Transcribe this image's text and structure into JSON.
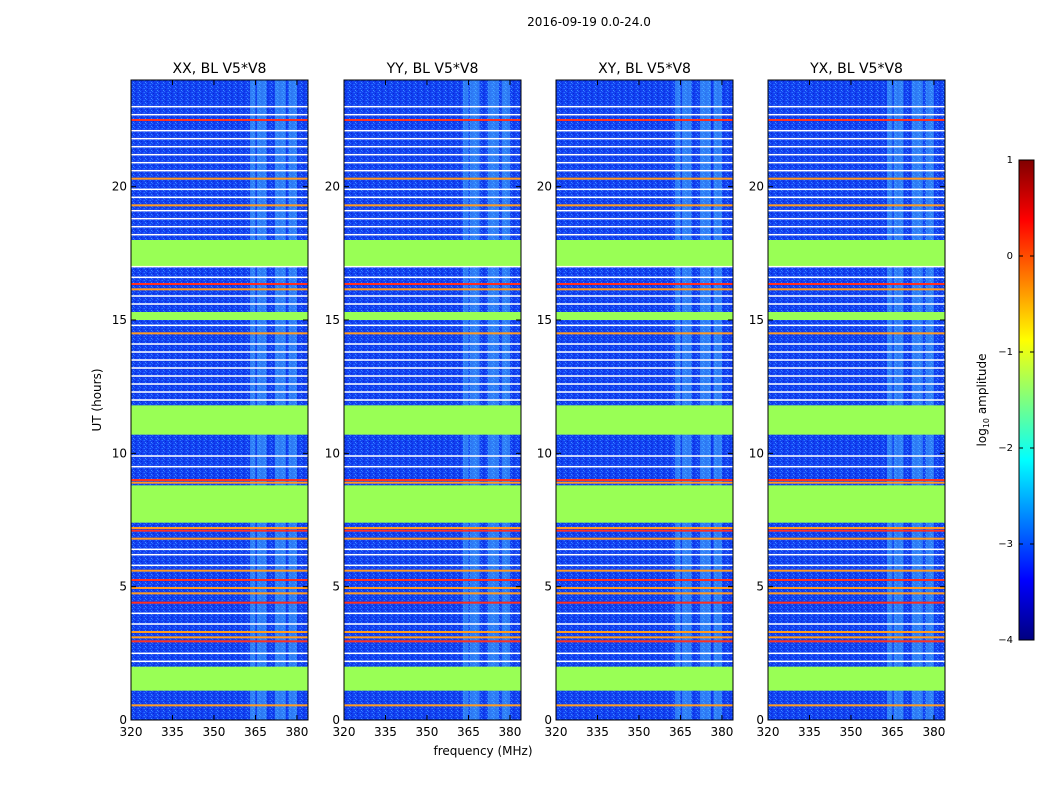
{
  "chart_data": {
    "type": "heatmap",
    "suptitle": "2016-09-19 0.0-24.0",
    "xlabel": "frequency (MHz)",
    "ylabel": "UT (hours)",
    "xlim": [
      320,
      384
    ],
    "ylim": [
      0,
      24
    ],
    "xticks": [
      "320",
      "335",
      "350",
      "365",
      "380"
    ],
    "yticks": [
      "0",
      "5",
      "10",
      "15",
      "20"
    ],
    "panels": [
      {
        "title": "XX, BL V5*V8"
      },
      {
        "title": "YY, BL V5*V8"
      },
      {
        "title": "XY, BL V5*V8"
      },
      {
        "title": "YX, BL V5*V8"
      }
    ],
    "flagged_blocks_ut": [
      [
        1.1,
        2.0
      ],
      [
        7.4,
        8.8
      ],
      [
        10.7,
        11.8
      ],
      [
        15.0,
        15.3
      ],
      [
        17.0,
        18.0
      ]
    ],
    "hot_lines_ut": [
      0.55,
      2.95,
      3.1,
      3.3,
      4.4,
      4.75,
      4.95,
      5.25,
      5.6,
      6.8,
      7.1,
      7.2,
      8.9,
      9.0,
      14.5,
      16.15,
      16.35,
      19.3,
      20.3,
      22.5
    ],
    "white_lines_ut": [
      2.2,
      2.5,
      3.6,
      4.0,
      5.8,
      6.2,
      6.4,
      9.5,
      9.9,
      12.0,
      12.3,
      12.6,
      12.9,
      13.2,
      13.5,
      13.8,
      14.1,
      14.8,
      15.6,
      15.9,
      16.6,
      17.0,
      18.2,
      18.5,
      18.8,
      19.1,
      19.6,
      19.9,
      20.6,
      20.9,
      21.2,
      21.5,
      21.8,
      22.1,
      22.7,
      23.0
    ],
    "rfi_bands_mhz": [
      [
        363,
        365
      ],
      [
        365.5,
        367
      ],
      [
        367,
        369
      ],
      [
        372,
        376
      ],
      [
        377,
        380
      ]
    ],
    "colorbar": {
      "label": "log10 amplitude",
      "min": -4,
      "max": 1,
      "ticks": [
        "1",
        "0",
        "−1",
        "−2",
        "−3",
        "−4"
      ]
    }
  }
}
